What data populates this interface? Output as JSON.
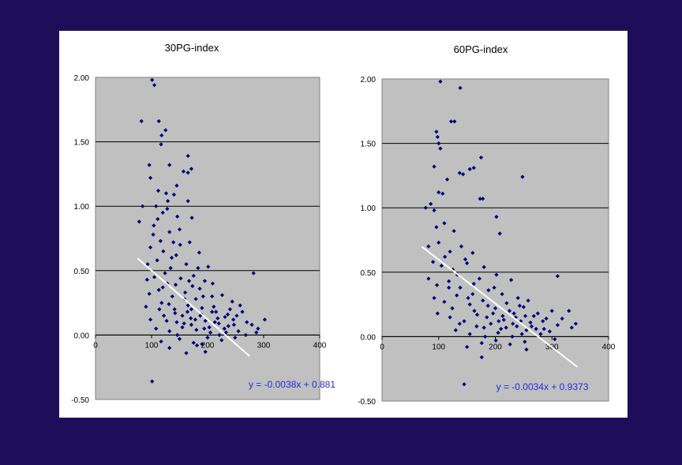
{
  "chart_data": [
    {
      "type": "scatter",
      "title": "30PG-index",
      "xlim": [
        0,
        400
      ],
      "ylim": [
        -0.5,
        2.0
      ],
      "x_ticks": [
        "0",
        "100",
        "200",
        "300",
        "400"
      ],
      "y_ticks": [
        "2.00",
        "1.50",
        "1.00",
        "0.50",
        "0.00",
        "-0.50"
      ],
      "marker_color": "#00007a",
      "plot_background": "#c0c0c0",
      "grid": true,
      "trendline": {
        "slope": -0.0038,
        "intercept": 0.881,
        "x_range": [
          75,
          275
        ],
        "color": "#ffffff"
      },
      "equation": "y = -0.0038x + 0.881",
      "points": [
        [
          101,
          1.98
        ],
        [
          105,
          1.94
        ],
        [
          82,
          1.66
        ],
        [
          113,
          1.66
        ],
        [
          125,
          1.59
        ],
        [
          118,
          1.55
        ],
        [
          96,
          1.32
        ],
        [
          132,
          1.32
        ],
        [
          117,
          1.48
        ],
        [
          165,
          1.39
        ],
        [
          157,
          1.27
        ],
        [
          165,
          1.26
        ],
        [
          171,
          1.29
        ],
        [
          98,
          1.22
        ],
        [
          145,
          1.16
        ],
        [
          112,
          1.12
        ],
        [
          126,
          1.1
        ],
        [
          140,
          1.09
        ],
        [
          165,
          1.04
        ],
        [
          108,
          1.0
        ],
        [
          128,
          0.98
        ],
        [
          120,
          0.95
        ],
        [
          146,
          0.92
        ],
        [
          84,
          1.0
        ],
        [
          172,
          0.91
        ],
        [
          78,
          0.88
        ],
        [
          104,
          0.85
        ],
        [
          132,
          0.8
        ],
        [
          150,
          0.82
        ],
        [
          116,
          0.73
        ],
        [
          139,
          0.72
        ],
        [
          168,
          0.72
        ],
        [
          98,
          0.68
        ],
        [
          121,
          0.65
        ],
        [
          144,
          0.62
        ],
        [
          185,
          0.64
        ],
        [
          93,
          0.55
        ],
        [
          110,
          0.58
        ],
        [
          134,
          0.52
        ],
        [
          162,
          0.55
        ],
        [
          201,
          0.53
        ],
        [
          282,
          0.48
        ],
        [
          92,
          0.43
        ],
        [
          105,
          0.45
        ],
        [
          128,
          0.4
        ],
        [
          152,
          0.44
        ],
        [
          175,
          0.46
        ],
        [
          195,
          0.42
        ],
        [
          96,
          0.32
        ],
        [
          113,
          0.35
        ],
        [
          137,
          0.3
        ],
        [
          160,
          0.33
        ],
        [
          186,
          0.36
        ],
        [
          208,
          0.3
        ],
        [
          90,
          0.22
        ],
        [
          118,
          0.25
        ],
        [
          141,
          0.2
        ],
        [
          165,
          0.23
        ],
        [
          190,
          0.21
        ],
        [
          215,
          0.18
        ],
        [
          240,
          0.2
        ],
        [
          98,
          0.12
        ],
        [
          122,
          0.15
        ],
        [
          145,
          0.1
        ],
        [
          170,
          0.13
        ],
        [
          196,
          0.11
        ],
        [
          220,
          0.09
        ],
        [
          246,
          0.12
        ],
        [
          270,
          0.1
        ],
        [
          108,
          0.05
        ],
        [
          132,
          0.03
        ],
        [
          155,
          0.06
        ],
        [
          180,
          0.04
        ],
        [
          205,
          0.02
        ],
        [
          230,
          0.05
        ],
        [
          255,
          0.03
        ],
        [
          117,
          -0.05
        ],
        [
          150,
          -0.03
        ],
        [
          175,
          -0.06
        ],
        [
          200,
          -0.02
        ],
        [
          225,
          -0.04
        ],
        [
          181,
          -0.08
        ],
        [
          132,
          -0.1
        ],
        [
          196,
          -0.13
        ],
        [
          162,
          -0.14
        ],
        [
          101,
          -0.36
        ],
        [
          190,
          -0.07
        ],
        [
          171,
          0.08
        ],
        [
          187,
          0.15
        ],
        [
          211,
          0.22
        ],
        [
          231,
          0.14
        ],
        [
          262,
          0.18
        ],
        [
          279,
          0.08
        ],
        [
          290,
          0.05
        ],
        [
          302,
          0.12
        ],
        [
          268,
          0.0
        ],
        [
          142,
          0.17
        ],
        [
          159,
          0.28
        ],
        [
          173,
          0.38
        ],
        [
          124,
          0.48
        ],
        [
          136,
          0.6
        ],
        [
          151,
          0.7
        ],
        [
          103,
          0.78
        ],
        [
          111,
          0.9
        ],
        [
          129,
          1.04
        ],
        [
          120,
          0.37
        ],
        [
          131,
          0.24
        ],
        [
          146,
          0.0
        ],
        [
          164,
          0.18
        ],
        [
          179,
          0.28
        ],
        [
          194,
          0.05
        ],
        [
          213,
          0.1
        ],
        [
          237,
          0.07
        ],
        [
          252,
          0.15
        ],
        [
          183,
          0.52
        ],
        [
          209,
          0.4
        ],
        [
          226,
          0.31
        ],
        [
          244,
          0.26
        ],
        [
          258,
          0.23
        ],
        [
          287,
          0.02
        ],
        [
          155,
          0.15
        ],
        [
          167,
          0.42
        ],
        [
          178,
          0.12
        ],
        [
          192,
          0.3
        ],
        [
          208,
          0.18
        ],
        [
          221,
          0.0
        ],
        [
          236,
          0.16
        ],
        [
          249,
          -0.02
        ],
        [
          114,
          0.2
        ],
        [
          127,
          0.11
        ],
        [
          143,
          0.39
        ],
        [
          158,
          0.09
        ],
        [
          171,
          0.2
        ],
        [
          189,
          0.16
        ],
        [
          203,
          0.06
        ],
        [
          218,
          0.13
        ],
        [
          233,
          0.02
        ],
        [
          247,
          0.08
        ]
      ]
    },
    {
      "type": "scatter",
      "title": "60PG-index",
      "xlim": [
        0,
        400
      ],
      "ylim": [
        -0.5,
        2.0
      ],
      "x_ticks": [
        "0",
        "100",
        "200",
        "300",
        "400"
      ],
      "y_ticks": [
        "2.00",
        "1.50",
        "1.00",
        "0.50",
        "0.00",
        "-0.50"
      ],
      "marker_color": "#00007a",
      "plot_background": "#c0c0c0",
      "grid": true,
      "trendline": {
        "slope": -0.0034,
        "intercept": 0.9373,
        "x_range": [
          70,
          345
        ],
        "color": "#ffffff"
      },
      "equation": "y = -0.0034x + 0.9373",
      "points": [
        [
          103,
          1.98
        ],
        [
          138,
          1.93
        ],
        [
          122,
          1.67
        ],
        [
          128,
          1.67
        ],
        [
          96,
          1.59
        ],
        [
          98,
          1.55
        ],
        [
          103,
          1.46
        ],
        [
          100,
          1.5
        ],
        [
          175,
          1.39
        ],
        [
          155,
          1.3
        ],
        [
          162,
          1.31
        ],
        [
          137,
          1.27
        ],
        [
          143,
          1.26
        ],
        [
          92,
          1.32
        ],
        [
          100,
          1.12
        ],
        [
          107,
          1.11
        ],
        [
          115,
          1.22
        ],
        [
          248,
          1.24
        ],
        [
          77,
          1.0
        ],
        [
          86,
          1.03
        ],
        [
          92,
          0.98
        ],
        [
          173,
          1.07
        ],
        [
          178,
          1.07
        ],
        [
          202,
          0.93
        ],
        [
          96,
          0.85
        ],
        [
          110,
          0.88
        ],
        [
          127,
          0.82
        ],
        [
          208,
          0.8
        ],
        [
          82,
          0.7
        ],
        [
          100,
          0.73
        ],
        [
          120,
          0.66
        ],
        [
          140,
          0.7
        ],
        [
          160,
          0.65
        ],
        [
          90,
          0.58
        ],
        [
          105,
          0.55
        ],
        [
          125,
          0.52
        ],
        [
          150,
          0.57
        ],
        [
          180,
          0.54
        ],
        [
          202,
          0.48
        ],
        [
          228,
          0.44
        ],
        [
          310,
          0.47
        ],
        [
          82,
          0.45
        ],
        [
          97,
          0.4
        ],
        [
          118,
          0.43
        ],
        [
          138,
          0.38
        ],
        [
          162,
          0.41
        ],
        [
          188,
          0.36
        ],
        [
          212,
          0.33
        ],
        [
          240,
          0.3
        ],
        [
          92,
          0.3
        ],
        [
          110,
          0.27
        ],
        [
          132,
          0.32
        ],
        [
          155,
          0.25
        ],
        [
          178,
          0.28
        ],
        [
          200,
          0.22
        ],
        [
          225,
          0.2
        ],
        [
          250,
          0.23
        ],
        [
          275,
          0.18
        ],
        [
          300,
          0.2
        ],
        [
          98,
          0.18
        ],
        [
          120,
          0.15
        ],
        [
          145,
          0.12
        ],
        [
          168,
          0.17
        ],
        [
          192,
          0.1
        ],
        [
          215,
          0.13
        ],
        [
          238,
          0.08
        ],
        [
          262,
          0.11
        ],
        [
          286,
          0.06
        ],
        [
          310,
          0.09
        ],
        [
          335,
          0.07
        ],
        [
          130,
          0.05
        ],
        [
          155,
          0.02
        ],
        [
          180,
          0.07
        ],
        [
          205,
          0.03
        ],
        [
          230,
          0.0
        ],
        [
          255,
          0.05
        ],
        [
          280,
          0.02
        ],
        [
          305,
          -0.02
        ],
        [
          150,
          -0.08
        ],
        [
          176,
          -0.05
        ],
        [
          201,
          -0.03
        ],
        [
          226,
          -0.06
        ],
        [
          252,
          -0.04
        ],
        [
          176,
          -0.16
        ],
        [
          145,
          -0.37
        ],
        [
          255,
          -0.1
        ],
        [
          160,
          0.33
        ],
        [
          172,
          0.45
        ],
        [
          185,
          0.15
        ],
        [
          198,
          0.38
        ],
        [
          210,
          0.06
        ],
        [
          220,
          0.26
        ],
        [
          233,
          0.18
        ],
        [
          245,
          0.12
        ],
        [
          258,
          0.28
        ],
        [
          268,
          0.16
        ],
        [
          290,
          0.14
        ],
        [
          318,
          0.14
        ],
        [
          330,
          0.2
        ],
        [
          342,
          0.1
        ],
        [
          118,
          0.38
        ],
        [
          133,
          0.48
        ],
        [
          147,
          0.6
        ],
        [
          163,
          0.2
        ],
        [
          187,
          0.24
        ],
        [
          213,
          0.16
        ],
        [
          231,
          0.1
        ],
        [
          247,
          0.02
        ],
        [
          264,
          0.08
        ],
        [
          284,
          0.12
        ],
        [
          296,
          0.04
        ],
        [
          111,
          0.62
        ],
        [
          124,
          0.22
        ],
        [
          137,
          0.1
        ],
        [
          152,
          0.3
        ],
        [
          167,
          0.08
        ],
        [
          182,
          0.0
        ],
        [
          196,
          0.18
        ],
        [
          206,
          0.12
        ],
        [
          219,
          0.07
        ],
        [
          236,
          0.15
        ],
        [
          243,
          0.24
        ],
        [
          253,
          0.16
        ],
        [
          272,
          0.06
        ]
      ]
    }
  ]
}
